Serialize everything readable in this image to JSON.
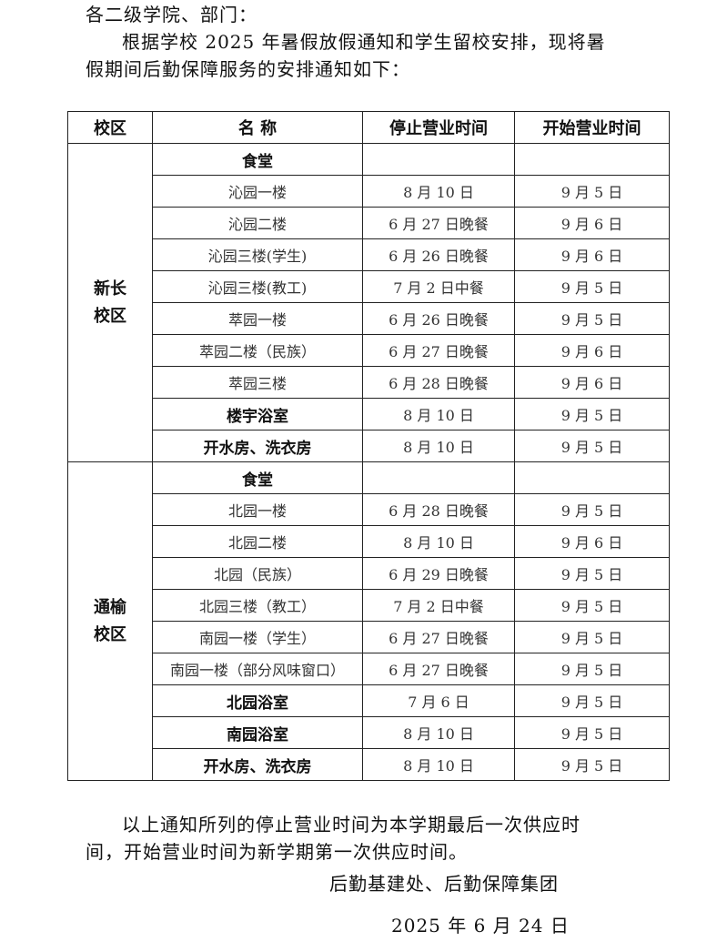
{
  "salutation": "各二级学院、部门：",
  "intro_line1": "根据学校 2025 年暑假放假通知和学生留校安排，现将暑",
  "intro_line2": "假期间后勤保障服务的安排通知如下：",
  "table": {
    "headers": [
      "校区",
      "名 称",
      "停止营业时间",
      "开始营业时间"
    ],
    "campuses": [
      {
        "name_line1": "新长",
        "name_line2": "校区",
        "rows": [
          {
            "name": "食堂",
            "stop": "",
            "start": "",
            "bold": true
          },
          {
            "name": "沁园一楼",
            "stop": "8 月 10 日",
            "start": "9 月 5 日",
            "bold": false
          },
          {
            "name": "沁园二楼",
            "stop": "6 月 27 日晚餐",
            "start": "9 月 6 日",
            "bold": false
          },
          {
            "name": "沁园三楼(学生)",
            "stop": "6 月 26 日晚餐",
            "start": "9 月 6 日",
            "bold": false
          },
          {
            "name": "沁园三楼(教工)",
            "stop": "7 月 2 日中餐",
            "start": "9 月 5 日",
            "bold": false
          },
          {
            "name": "萃园一楼",
            "stop": "6 月 26 日晚餐",
            "start": "9 月 5 日",
            "bold": false
          },
          {
            "name": "萃园二楼（民族）",
            "stop": "6 月 27 日晚餐",
            "start": "9 月 6 日",
            "bold": false
          },
          {
            "name": "萃园三楼",
            "stop": "6 月 28 日晚餐",
            "start": "9 月 6 日",
            "bold": false
          },
          {
            "name": "楼宇浴室",
            "stop": "8 月 10 日",
            "start": "9 月 5 日",
            "bold": true
          },
          {
            "name": "开水房、洗衣房",
            "stop": "8 月 10 日",
            "start": "9 月 5 日",
            "bold": true
          }
        ]
      },
      {
        "name_line1": "通榆",
        "name_line2": "校区",
        "rows": [
          {
            "name": "食堂",
            "stop": "",
            "start": "",
            "bold": true
          },
          {
            "name": "北园一楼",
            "stop": "6 月 28 日晚餐",
            "start": "9 月 5 日",
            "bold": false
          },
          {
            "name": "北园二楼",
            "stop": "8 月 10 日",
            "start": "9 月 6 日",
            "bold": false
          },
          {
            "name": "北园（民族）",
            "stop": "6 月 29 日晚餐",
            "start": "9 月 5 日",
            "bold": false
          },
          {
            "name": "北园三楼（教工）",
            "stop": "7 月 2 日中餐",
            "start": "9 月 5 日",
            "bold": false
          },
          {
            "name": "南园一楼（学生）",
            "stop": "6 月 27 日晚餐",
            "start": "9 月 5 日",
            "bold": false
          },
          {
            "name": "南园一楼（部分风味窗口）",
            "stop": "6 月 27 日晚餐",
            "start": "9 月 5 日",
            "bold": false
          },
          {
            "name": "北园浴室",
            "stop": "7 月 6 日",
            "start": "9 月 5 日",
            "bold": true
          },
          {
            "name": "南园浴室",
            "stop": "8 月 10 日",
            "start": "9 月 5 日",
            "bold": true
          },
          {
            "name": "开水房、洗衣房",
            "stop": "8 月 10 日",
            "start": "9 月 5 日",
            "bold": true
          }
        ]
      }
    ]
  },
  "note_line1": "以上通知所列的停止营业时间为本学期最后一次供应时",
  "note_line2": "间，开始营业时间为新学期第一次供应时间。",
  "signature": "后勤基建处、后勤保障集团",
  "date": "2025 年 6 月 24 日"
}
